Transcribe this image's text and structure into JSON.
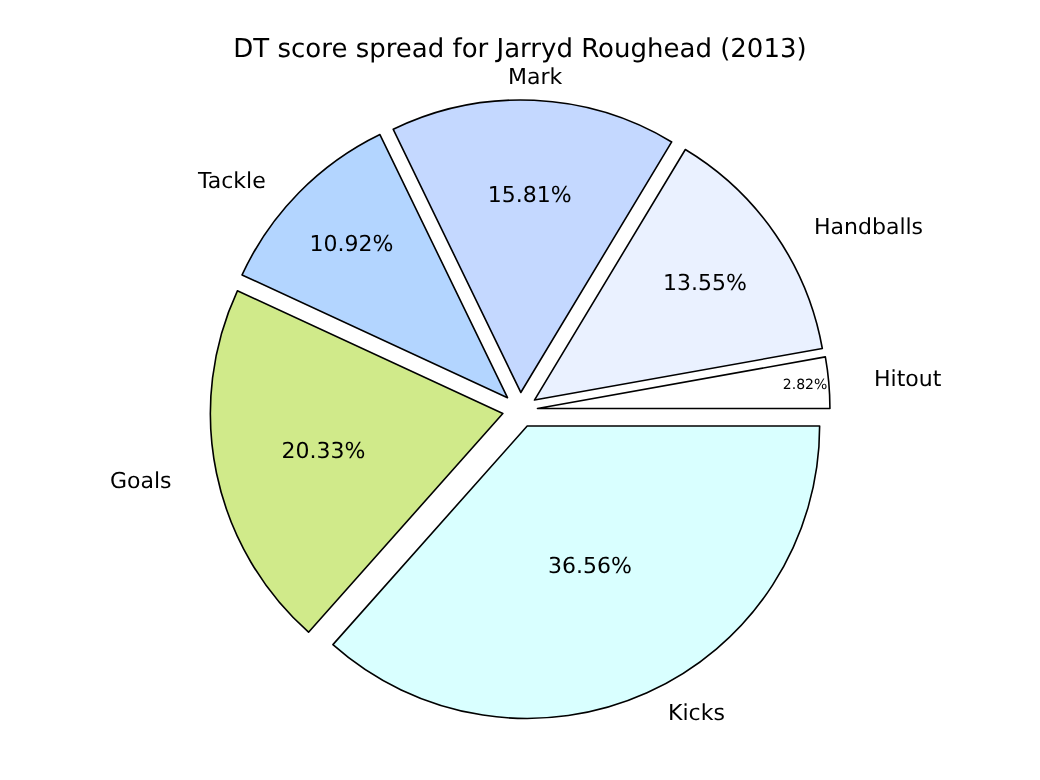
{
  "chart_data": {
    "type": "pie",
    "title": "DT score spread for Jarryd Roughead (2013)",
    "categories": [
      "Kicks",
      "Goals",
      "Tackle",
      "Mark",
      "Handballs",
      "Hitout"
    ],
    "values": [
      36.56,
      20.33,
      10.92,
      15.81,
      13.55,
      2.82
    ],
    "value_labels": [
      "36.56%",
      "20.33%",
      "10.92%",
      "15.81%",
      "13.55%",
      "2.82%"
    ],
    "colors": [
      "#d9ffff",
      "#d0ea8a",
      "#b3d5ff",
      "#c4d8ff",
      "#eaf1ff",
      "#ffffff"
    ],
    "legend": false
  }
}
